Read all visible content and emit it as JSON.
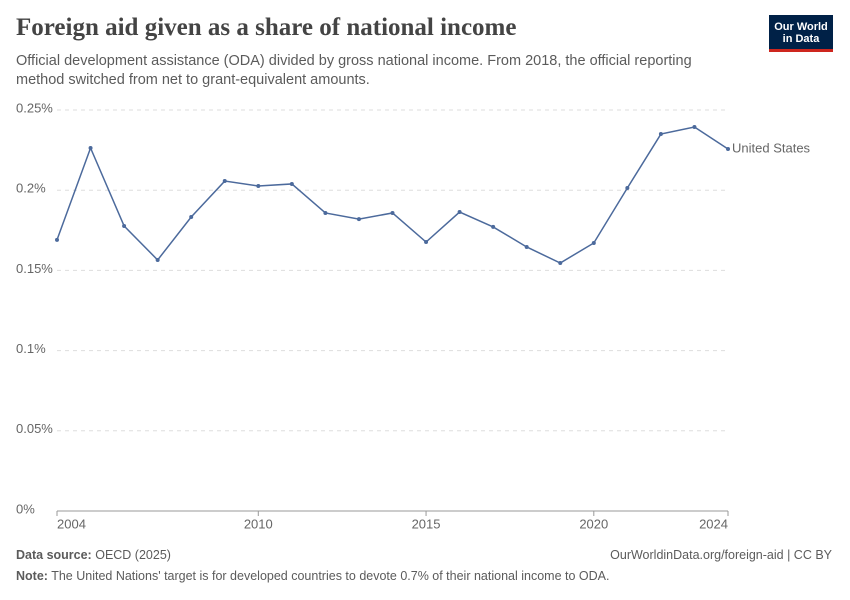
{
  "chart_data": {
    "type": "line",
    "title": "Foreign aid given as a share of national income",
    "subtitle": "Official development assistance (ODA) divided by gross national income. From 2018, the official reporting method switched from net to grant-equivalent amounts.",
    "logo": [
      "Our World",
      "in Data"
    ],
    "x": [
      2004,
      2005,
      2006,
      2007,
      2008,
      2009,
      2010,
      2011,
      2012,
      2013,
      2014,
      2015,
      2016,
      2017,
      2018,
      2019,
      2020,
      2021,
      2022,
      2023,
      2024
    ],
    "series": [
      {
        "name": "United States",
        "color": "#4c6a9c",
        "values": [
          0.169,
          0.2263,
          0.1777,
          0.1565,
          0.1833,
          0.2057,
          0.2026,
          0.2039,
          0.1858,
          0.182,
          0.1858,
          0.1677,
          0.1864,
          0.1771,
          0.1646,
          0.1546,
          0.1671,
          0.2014,
          0.235,
          0.2394,
          0.2257
        ]
      }
    ],
    "xlim": [
      2004,
      2024
    ],
    "xticks": [
      2004,
      2010,
      2015,
      2020,
      2024
    ],
    "ylim": [
      0,
      0.25
    ],
    "yticks": [
      {
        "value": 0,
        "label": "0%"
      },
      {
        "value": 0.05,
        "label": "0.05%"
      },
      {
        "value": 0.1,
        "label": "0.1%"
      },
      {
        "value": 0.15,
        "label": "0.15%"
      },
      {
        "value": 0.2,
        "label": "0.2%"
      },
      {
        "value": 0.25,
        "label": "0.25%"
      }
    ],
    "grid": true,
    "source_label": "Data source:",
    "source": "OECD (2025)",
    "url": "OurWorldinData.org/foreign-aid | CC BY",
    "note_label": "Note:",
    "note": "The United Nations' target is for developed countries to devote 0.7% of their national income to ODA."
  }
}
